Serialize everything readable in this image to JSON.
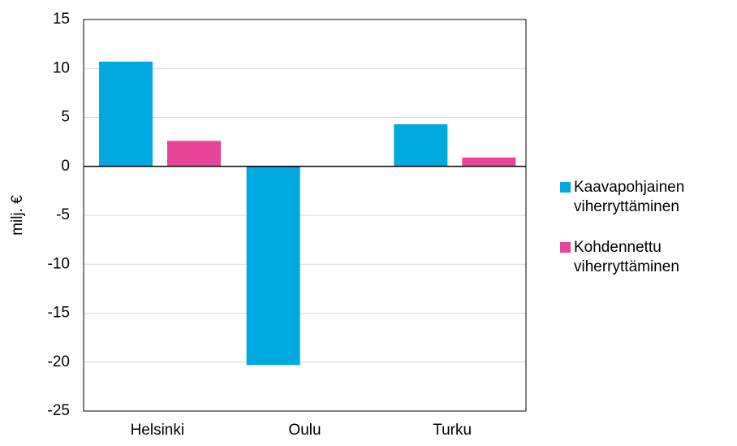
{
  "chart_data": {
    "type": "bar",
    "y_label": "milj. €",
    "categories": [
      "Helsinki",
      "Oulu",
      "Turku"
    ],
    "series": [
      {
        "name": "Kaavapohjainen viherryttäminen",
        "color": "#00a9e0",
        "values": [
          10.7,
          -20.3,
          4.3
        ]
      },
      {
        "name": "Kohdennettu viherryttäminen",
        "color": "#e8449a",
        "values": [
          2.6,
          0,
          0.9
        ]
      }
    ],
    "ylim": [
      -25,
      15
    ],
    "yticks": [
      -25,
      -20,
      -15,
      -10,
      -5,
      0,
      5,
      10,
      15
    ],
    "grid": true,
    "legend": "right"
  }
}
